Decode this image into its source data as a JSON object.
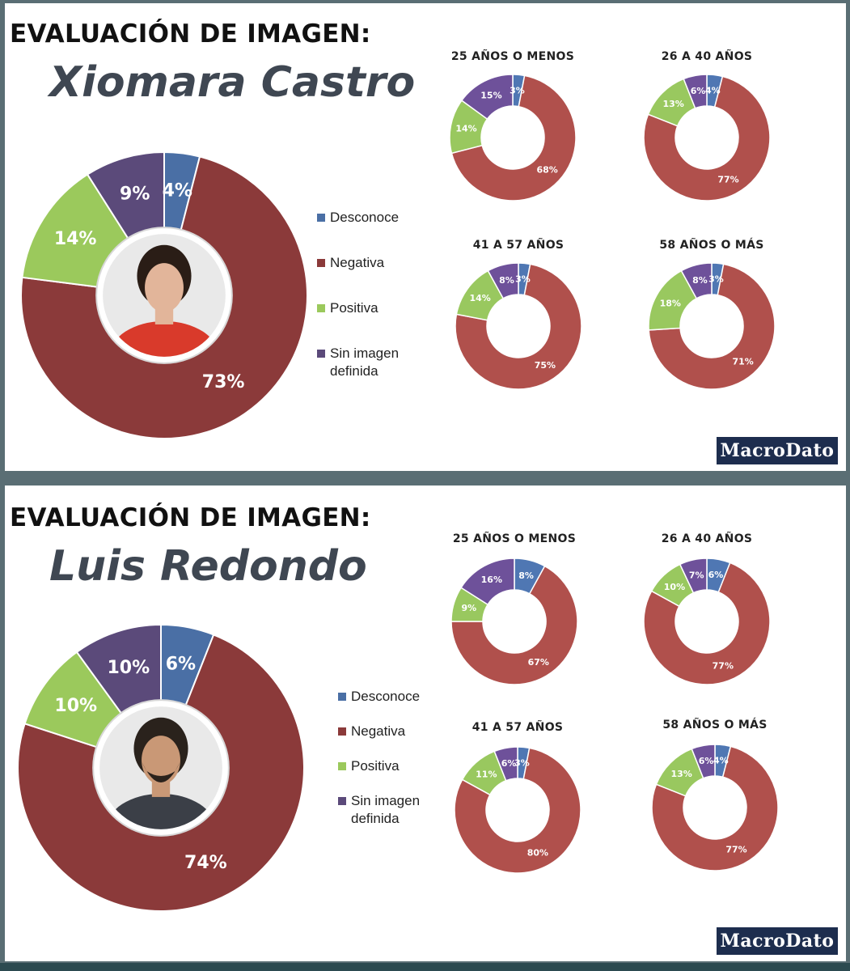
{
  "colors": {
    "Desconoce": "#4a6fa5",
    "Negativa": "#8b3a3a",
    "Positiva": "#9bc95c",
    "Sin imagen definida": "#5b4a7a"
  },
  "sub_colors": {
    "Desconoce": "#4f77b3",
    "Negativa": "#b0504c",
    "Positiva": "#99c85f",
    "Sin imagen definida": "#6e519a"
  },
  "legend": [
    "Desconoce",
    "Negativa",
    "Positiva",
    "Sin imagen definida"
  ],
  "legend_display": {
    "l0": "Desconoce",
    "l1": "Negativa",
    "l2": "Positiva",
    "l3a": "Sin imagen",
    "l3b": "definida"
  },
  "panels": [
    {
      "title": "EVALUACIÓN DE IMAGEN:",
      "name": "Xiomara Castro",
      "logo": "MacroDato",
      "photo": "portrait-photo"
    },
    {
      "title": "EVALUACIÓN DE IMAGEN:",
      "name": "Luis Redondo",
      "logo": "MacroDato",
      "photo": "portrait-photo"
    }
  ],
  "chart_data": [
    {
      "type": "pie",
      "title": "Xiomara Castro",
      "categories": [
        "Desconoce",
        "Negativa",
        "Positiva",
        "Sin imagen definida"
      ],
      "values": [
        4,
        73,
        14,
        9
      ],
      "labels": [
        "4%",
        "73%",
        "14%",
        "9%"
      ]
    },
    {
      "type": "pie",
      "title": "25 AÑOS O MENOS",
      "categories": [
        "Desconoce",
        "Negativa",
        "Positiva",
        "Sin imagen definida"
      ],
      "values": [
        3,
        68,
        14,
        15
      ],
      "labels": [
        "3%",
        "68%",
        "14%",
        "15%"
      ]
    },
    {
      "type": "pie",
      "title": "26 A 40 AÑOS",
      "categories": [
        "Desconoce",
        "Negativa",
        "Positiva",
        "Sin imagen definida"
      ],
      "values": [
        4,
        77,
        13,
        6
      ],
      "labels": [
        "4%",
        "77%",
        "13%",
        "6%"
      ]
    },
    {
      "type": "pie",
      "title": "41 A 57 AÑOS",
      "categories": [
        "Desconoce",
        "Negativa",
        "Positiva",
        "Sin imagen definida"
      ],
      "values": [
        3,
        75,
        14,
        8
      ],
      "labels": [
        "3%",
        "75%",
        "14%",
        "8%"
      ]
    },
    {
      "type": "pie",
      "title": "58 AÑOS O MÁS",
      "categories": [
        "Desconoce",
        "Negativa",
        "Positiva",
        "Sin imagen definida"
      ],
      "values": [
        3,
        71,
        18,
        8
      ],
      "labels": [
        "3%",
        "71%",
        "18%",
        "8%"
      ]
    },
    {
      "type": "pie",
      "title": "Luis Redondo",
      "categories": [
        "Desconoce",
        "Negativa",
        "Positiva",
        "Sin imagen definida"
      ],
      "values": [
        6,
        74,
        10,
        10
      ],
      "labels": [
        "6%",
        "74%",
        "10%",
        "10%"
      ]
    },
    {
      "type": "pie",
      "title": "25 AÑOS O MENOS",
      "categories": [
        "Desconoce",
        "Negativa",
        "Positiva",
        "Sin imagen definida"
      ],
      "values": [
        8,
        67,
        9,
        16
      ],
      "labels": [
        "8%",
        "67%",
        "9%",
        "16%"
      ]
    },
    {
      "type": "pie",
      "title": "26 A 40 AÑOS",
      "categories": [
        "Desconoce",
        "Negativa",
        "Positiva",
        "Sin imagen definida"
      ],
      "values": [
        6,
        77,
        10,
        7
      ],
      "labels": [
        "6%",
        "77%",
        "10%",
        "7%"
      ]
    },
    {
      "type": "pie",
      "title": "41 A 57 AÑOS",
      "categories": [
        "Desconoce",
        "Negativa",
        "Positiva",
        "Sin imagen definida"
      ],
      "values": [
        3,
        80,
        11,
        6
      ],
      "labels": [
        "3%",
        "80%",
        "11%",
        "6%"
      ]
    },
    {
      "type": "pie",
      "title": "58 AÑOS O MÁS",
      "categories": [
        "Desconoce",
        "Negativa",
        "Positiva",
        "Sin imagen definida"
      ],
      "values": [
        4,
        77,
        13,
        6
      ],
      "labels": [
        "4%",
        "77%",
        "13%",
        "6%"
      ]
    }
  ]
}
